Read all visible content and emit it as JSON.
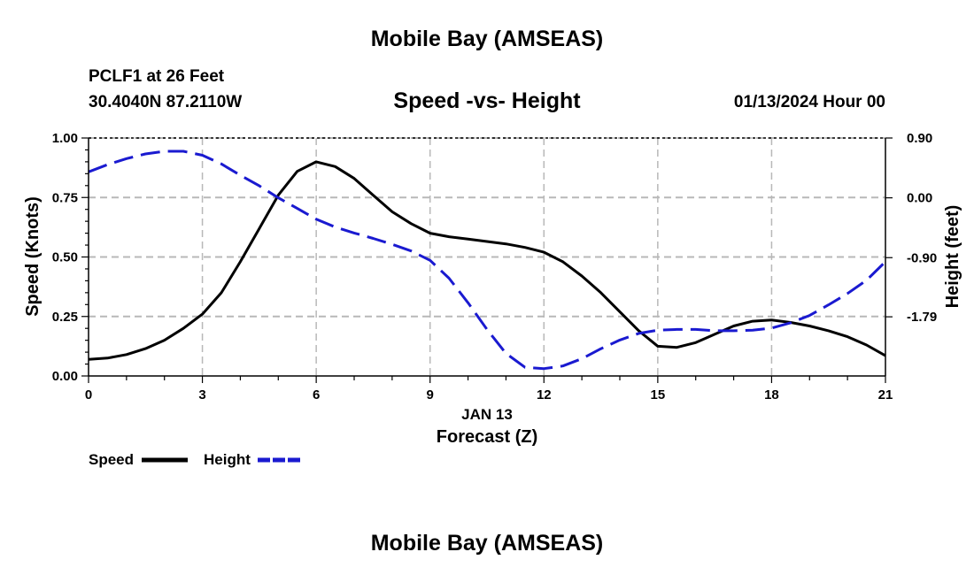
{
  "header": {
    "title": "Mobile Bay (AMSEAS)",
    "station": "PCLF1 at 26 Feet",
    "coords": "30.4040N  87.2110W",
    "subtitle": "Speed -vs- Height",
    "datetime": "01/13/2024 Hour 00"
  },
  "footer": {
    "title": "Mobile Bay (AMSEAS)"
  },
  "chart_data": {
    "type": "line",
    "xlabel": "Forecast (Z)",
    "xsublabel": "JAN 13",
    "ylabel_left": "Speed (Knots)",
    "ylabel_right": "Height (feet)",
    "xlim": [
      0,
      21
    ],
    "ylim_left": [
      0,
      1
    ],
    "ylim_right": [
      -2.68,
      0.9
    ],
    "x_ticks": [
      0,
      3,
      6,
      9,
      12,
      15,
      18,
      21
    ],
    "x_tick_labels": [
      "0",
      "3",
      "6",
      "9",
      "12",
      "15",
      "18",
      "21"
    ],
    "y_left_ticks": [
      0,
      0.25,
      0.5,
      0.75,
      1.0
    ],
    "y_left_tick_labels": [
      "0.00",
      "0.25",
      "0.50",
      "0.75",
      "1.00"
    ],
    "y_right_ticks": [
      -1.79,
      -0.9,
      0.0,
      0.9
    ],
    "y_right_tick_labels": [
      "-1.79",
      "-0.90",
      "0.00",
      "0.90"
    ],
    "grid": true,
    "legend_position": "bottom-left",
    "series": [
      {
        "name": "Speed",
        "axis": "left",
        "color": "#000000",
        "style": "solid",
        "x": [
          0,
          0.5,
          1,
          1.5,
          2,
          2.5,
          3,
          3.5,
          4,
          4.5,
          5,
          5.5,
          6,
          6.5,
          7,
          7.5,
          8,
          8.5,
          9,
          9.5,
          10,
          10.5,
          11,
          11.5,
          12,
          12.5,
          13,
          13.5,
          14,
          14.5,
          15,
          15.5,
          16,
          16.5,
          17,
          17.5,
          18,
          18.5,
          19,
          19.5,
          20,
          20.5,
          21
        ],
        "values": [
          0.07,
          0.075,
          0.09,
          0.115,
          0.15,
          0.2,
          0.26,
          0.35,
          0.48,
          0.62,
          0.76,
          0.86,
          0.9,
          0.88,
          0.83,
          0.76,
          0.69,
          0.64,
          0.6,
          0.585,
          0.575,
          0.565,
          0.555,
          0.54,
          0.52,
          0.48,
          0.42,
          0.35,
          0.27,
          0.19,
          0.125,
          0.12,
          0.14,
          0.175,
          0.21,
          0.23,
          0.235,
          0.225,
          0.21,
          0.19,
          0.165,
          0.13,
          0.085
        ]
      },
      {
        "name": "Height",
        "axis": "right",
        "color": "#1a1ad0",
        "style": "dashed",
        "x": [
          0,
          0.5,
          1,
          1.5,
          2,
          2.5,
          3,
          3.5,
          4,
          4.5,
          5,
          5.5,
          6,
          6.5,
          7,
          7.5,
          8,
          8.5,
          9,
          9.5,
          10,
          10.5,
          11,
          11.5,
          12,
          12.5,
          13,
          13.5,
          14,
          14.5,
          15,
          15.5,
          16,
          16.5,
          17,
          17.5,
          18,
          18.5,
          19,
          19.5,
          20,
          20.5,
          21
        ],
        "values": [
          0.39,
          0.5,
          0.59,
          0.66,
          0.7,
          0.7,
          0.64,
          0.51,
          0.34,
          0.18,
          0.0,
          -0.16,
          -0.32,
          -0.44,
          -0.53,
          -0.61,
          -0.7,
          -0.8,
          -0.94,
          -1.21,
          -1.58,
          -1.98,
          -2.34,
          -2.55,
          -2.57,
          -2.53,
          -2.42,
          -2.27,
          -2.14,
          -2.04,
          -1.99,
          -1.98,
          -1.98,
          -2.0,
          -2.0,
          -1.99,
          -1.96,
          -1.88,
          -1.77,
          -1.61,
          -1.44,
          -1.24,
          -0.96
        ]
      }
    ],
    "legend": [
      {
        "name": "Speed",
        "color": "#000000",
        "style": "solid"
      },
      {
        "name": "Height",
        "color": "#1a1ad0",
        "style": "dashed"
      }
    ]
  }
}
